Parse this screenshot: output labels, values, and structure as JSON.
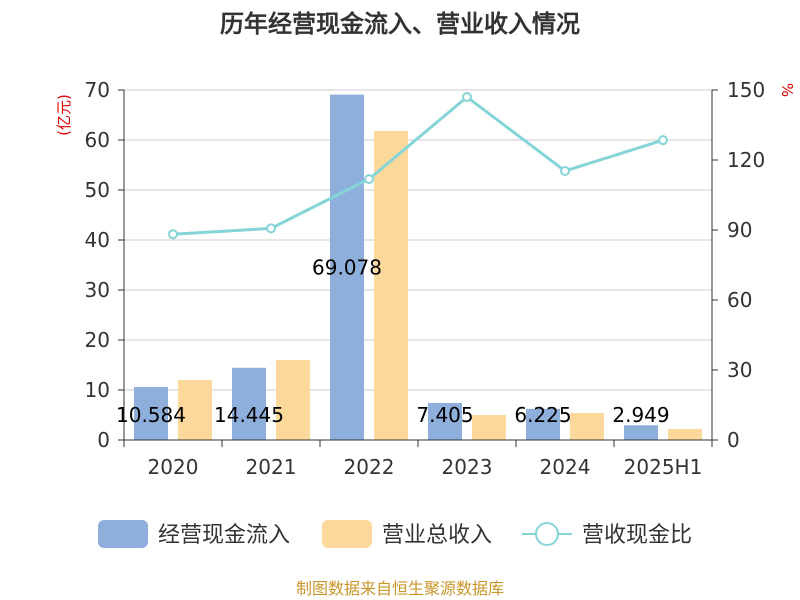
{
  "chart_data": {
    "type": "bar",
    "title": "历年经营现金流入、营业收入情况",
    "categories": [
      "2020",
      "2021",
      "2022",
      "2023",
      "2024",
      "2025H1"
    ],
    "series": [
      {
        "name": "经营现金流入",
        "type": "bar",
        "axis": "left",
        "color": "#8eaedb",
        "values": [
          10.584,
          14.445,
          69.078,
          7.405,
          6.225,
          2.949
        ],
        "labels": [
          "10.584",
          "14.445",
          "69.078",
          "7.405",
          "6.225",
          "2.949"
        ]
      },
      {
        "name": "营业总收入",
        "type": "bar",
        "axis": "left",
        "color": "#fdd89b",
        "values": [
          12.0,
          16.0,
          61.8,
          5.0,
          5.4,
          2.2
        ]
      },
      {
        "name": "营收现金比",
        "type": "line",
        "axis": "right",
        "color": "#84d4d8",
        "values": [
          88.2,
          90.7,
          111.8,
          147.0,
          115.3,
          128.5
        ]
      }
    ],
    "y_left": {
      "unit": "(亿元)",
      "ylim": [
        0,
        70
      ],
      "ticks": [
        "0",
        "10",
        "20",
        "30",
        "40",
        "50",
        "60",
        "70"
      ]
    },
    "y_right": {
      "unit": "%",
      "ylim": [
        0,
        150
      ],
      "ticks": [
        "0",
        "30",
        "60",
        "90",
        "120",
        "150"
      ]
    },
    "grid": true,
    "legend_position": "bottom",
    "source": "制图数据来自恒生聚源数据库"
  }
}
